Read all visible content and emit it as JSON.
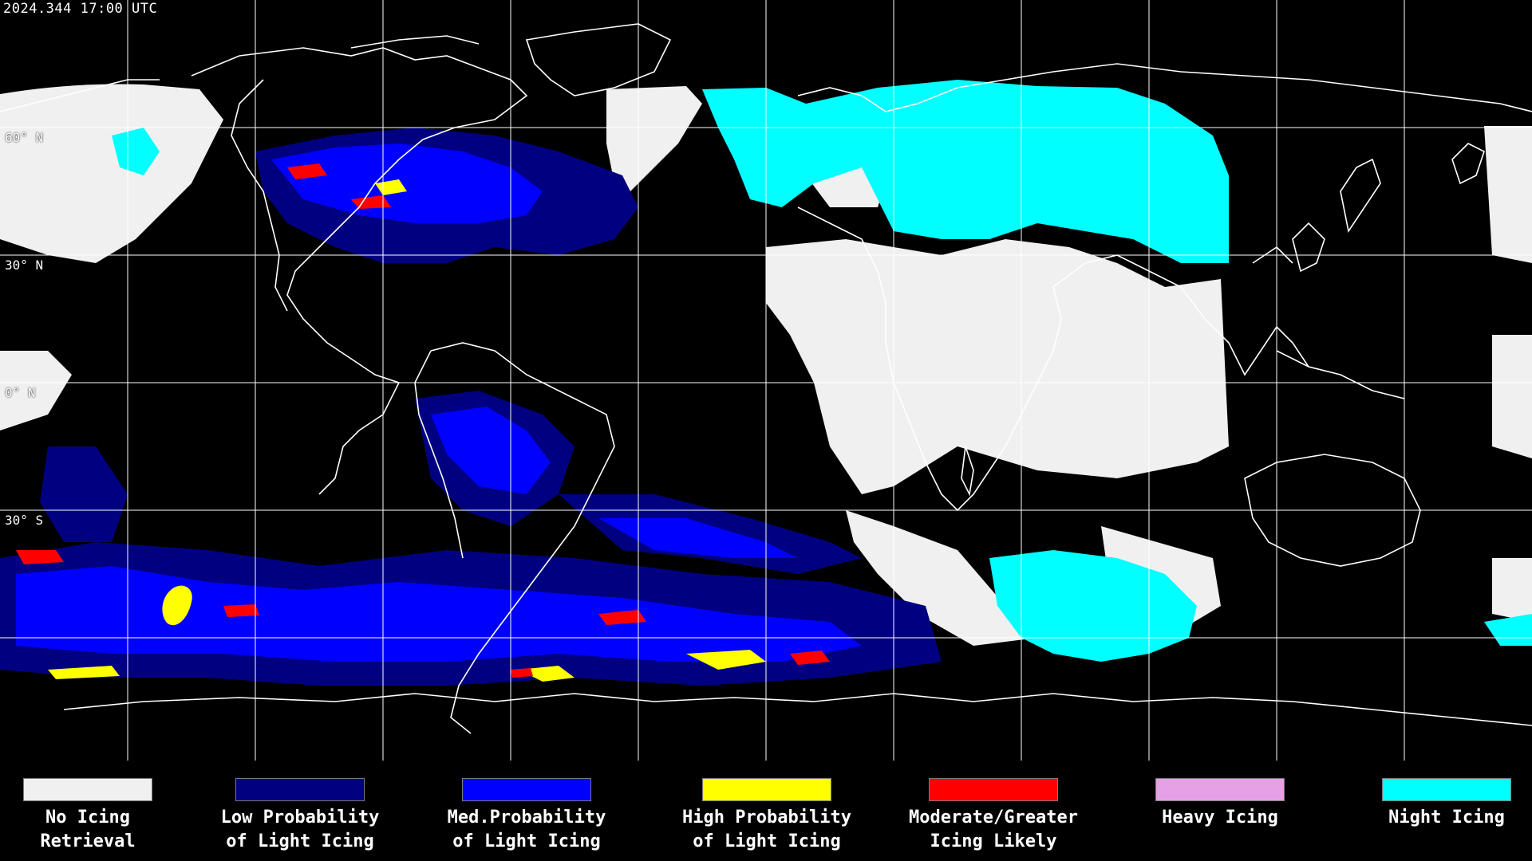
{
  "header": {
    "timestamp": "2024.344 17:00 UTC"
  },
  "map": {
    "grid_color": "#ffffff",
    "coastline_color": "#ffffff",
    "background_color": "#000000",
    "latitude_labels": [
      "60° N",
      "30° N",
      "0° N",
      "30° S"
    ]
  },
  "legend": {
    "items": [
      {
        "label_line1": "No Icing",
        "label_line2": "Retrieval",
        "color": "#f0f0f0"
      },
      {
        "label_line1": "Low Probability",
        "label_line2": "of Light Icing",
        "color": "#000080"
      },
      {
        "label_line1": "Med.Probability",
        "label_line2": "of Light Icing",
        "color": "#0000ff"
      },
      {
        "label_line1": "High Probability",
        "label_line2": "of Light Icing",
        "color": "#ffff00"
      },
      {
        "label_line1": "Moderate/Greater",
        "label_line2": "Icing Likely",
        "color": "#ff0000"
      },
      {
        "label_line1": "Heavy Icing",
        "label_line2": "",
        "color": "#e6a0e6"
      },
      {
        "label_line1": "Night Icing",
        "label_line2": "",
        "color": "#00ffff"
      }
    ]
  }
}
